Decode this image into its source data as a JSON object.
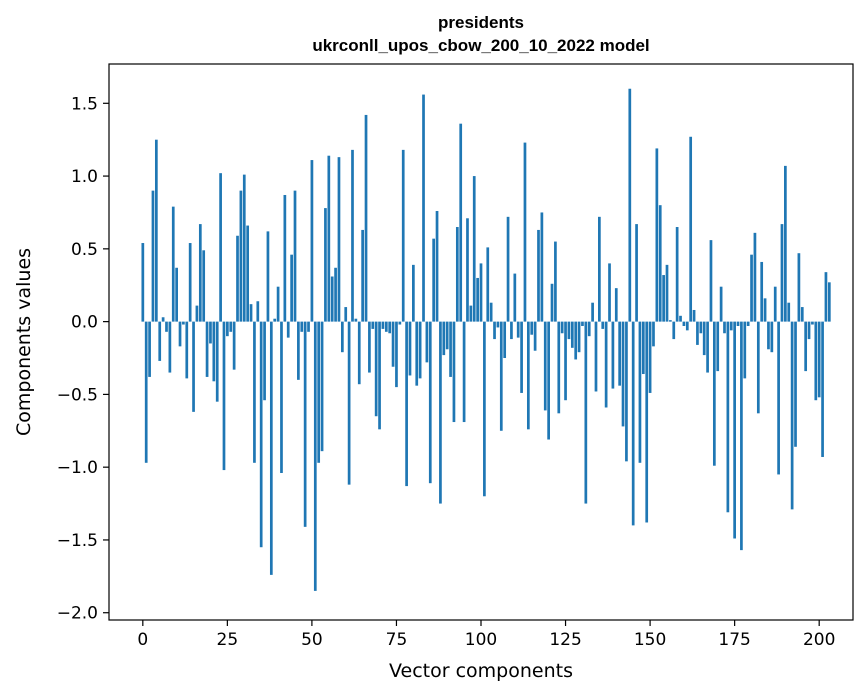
{
  "chart_data": {
    "type": "bar",
    "title": "presidents",
    "subtitle": "ukrconll_upos_cbow_200_10_2022 model",
    "xlabel": "Vector components",
    "ylabel": "Components values",
    "xlim": [
      -10,
      210
    ],
    "ylim": [
      -2.05,
      1.77
    ],
    "xticks": [
      0,
      25,
      50,
      75,
      100,
      125,
      150,
      175,
      200
    ],
    "xtick_labels": [
      "0",
      "25",
      "50",
      "75",
      "100",
      "125",
      "150",
      "175",
      "200"
    ],
    "yticks": [
      -2.0,
      -1.5,
      -1.0,
      -0.5,
      0.0,
      0.5,
      1.0,
      1.5
    ],
    "ytick_labels": [
      "−2.0",
      "−1.5",
      "−1.0",
      "−0.5",
      "0.0",
      "0.5",
      "1.0",
      "1.5"
    ],
    "color": "#1f77b4",
    "values": [
      0.54,
      -0.97,
      -0.38,
      0.9,
      1.25,
      -0.27,
      0.03,
      -0.07,
      -0.35,
      0.79,
      0.37,
      -0.17,
      -0.02,
      -0.39,
      0.54,
      -0.62,
      0.11,
      0.67,
      0.49,
      -0.38,
      -0.15,
      -0.41,
      -0.55,
      1.02,
      -1.02,
      -0.1,
      -0.07,
      -0.33,
      0.59,
      0.9,
      1.01,
      0.66,
      0.12,
      -0.97,
      0.14,
      -1.55,
      -0.54,
      0.62,
      -1.74,
      0.02,
      0.24,
      -1.04,
      0.87,
      -0.11,
      0.46,
      0.9,
      -0.4,
      -0.07,
      -1.41,
      -0.07,
      1.11,
      -1.85,
      -0.97,
      -0.89,
      0.78,
      1.14,
      0.31,
      0.37,
      1.13,
      -0.21,
      0.1,
      -1.12,
      1.18,
      0.02,
      -0.43,
      0.63,
      1.42,
      -0.35,
      -0.05,
      -0.65,
      -0.74,
      -0.05,
      -0.07,
      -0.08,
      -0.31,
      -0.45,
      -0.02,
      1.18,
      -1.13,
      -0.37,
      0.39,
      -0.44,
      -0.39,
      1.56,
      -0.28,
      -1.11,
      0.57,
      0.76,
      -1.25,
      -0.23,
      -0.19,
      -0.38,
      -0.69,
      0.65,
      1.36,
      -0.69,
      0.71,
      0.11,
      1.0,
      0.3,
      0.4,
      -1.2,
      0.51,
      0.13,
      -0.12,
      -0.04,
      -0.75,
      -0.25,
      0.72,
      -0.12,
      0.33,
      -0.11,
      -0.49,
      1.23,
      -0.74,
      -0.09,
      -0.2,
      0.63,
      0.75,
      -0.61,
      -0.81,
      0.26,
      0.55,
      -0.63,
      -0.08,
      -0.54,
      -0.12,
      -0.18,
      -0.26,
      -0.21,
      -0.03,
      -1.25,
      -0.1,
      0.13,
      -0.48,
      0.72,
      -0.05,
      -0.59,
      0.4,
      -0.46,
      0.23,
      -0.44,
      -0.72,
      -0.96,
      1.6,
      -1.4,
      0.67,
      -0.97,
      -0.36,
      -1.38,
      -0.49,
      -0.17,
      1.19,
      0.8,
      0.32,
      0.39,
      0.01,
      -0.12,
      0.65,
      0.04,
      -0.03,
      -0.06,
      1.27,
      0.08,
      -0.16,
      -0.08,
      -0.23,
      -0.35,
      0.56,
      -0.99,
      -0.34,
      0.24,
      -0.08,
      -1.31,
      -0.06,
      -1.49,
      -0.03,
      -1.57,
      -0.39,
      -0.03,
      0.46,
      0.61,
      -0.63,
      0.41,
      0.16,
      -0.19,
      -0.21,
      0.24,
      -1.05,
      0.67,
      1.07,
      0.13,
      -1.29,
      -0.86,
      0.47,
      0.1,
      -0.34,
      -0.12,
      -0.02,
      -0.54,
      -0.52,
      -0.93,
      0.34,
      0.27
    ]
  }
}
